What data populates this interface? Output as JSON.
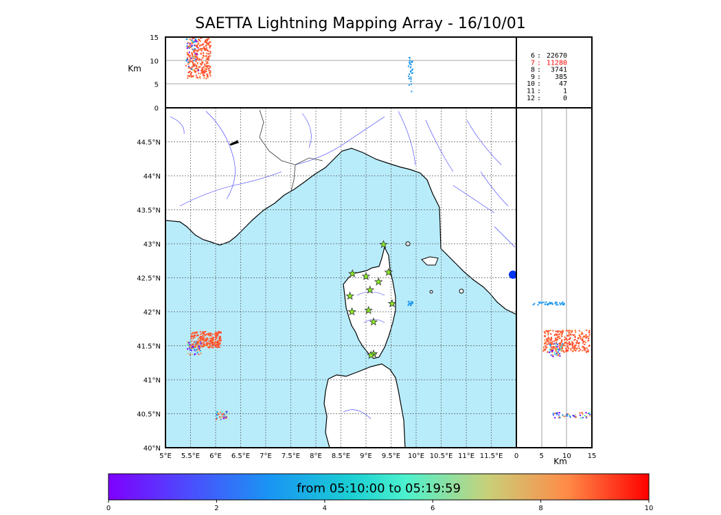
{
  "title": "SAETTA Lightning Mapping Array - 16/10/01",
  "alt_axis_unit": "Km",
  "alt_ticks": [
    "0",
    "5",
    "10",
    "15"
  ],
  "lat_ticks": [
    "40°N",
    "40.5°N",
    "41°N",
    "41.5°N",
    "42°N",
    "42.5°N",
    "43°N",
    "43.5°N",
    "44°N",
    "44.5°N"
  ],
  "lon_ticks": [
    "5°E",
    "5.5°E",
    "6°E",
    "6.5°E",
    "7°E",
    "7.5°E",
    "8°E",
    "8.5°E",
    "9°E",
    "9.5°E",
    "10°E",
    "10.5°E",
    "11°E",
    "11.5°E"
  ],
  "stations_stats": [
    {
      "label": "6",
      "value": "22670",
      "color": "#000000"
    },
    {
      "label": "7",
      "value": "11280",
      "color": "#ff0000"
    },
    {
      "label": "8",
      "value": "3741",
      "color": "#000000"
    },
    {
      "label": "9",
      "value": "385",
      "color": "#000000"
    },
    {
      "label": "10",
      "value": "47",
      "color": "#000000"
    },
    {
      "label": "11",
      "value": "1",
      "color": "#000000"
    },
    {
      "label": "12",
      "value": "0",
      "color": "#000000"
    }
  ],
  "colorbar": {
    "label": "from 05:10:00 to 05:19:59",
    "ticks": [
      "0",
      "2",
      "4",
      "6",
      "8",
      "10"
    ]
  },
  "colors": {
    "sea": "#b8ecfb",
    "source_main": "#ff5533",
    "source_alt": "#2299ee",
    "station": "#88ee22"
  },
  "station_icon": "star-icon",
  "station_count": 13
}
